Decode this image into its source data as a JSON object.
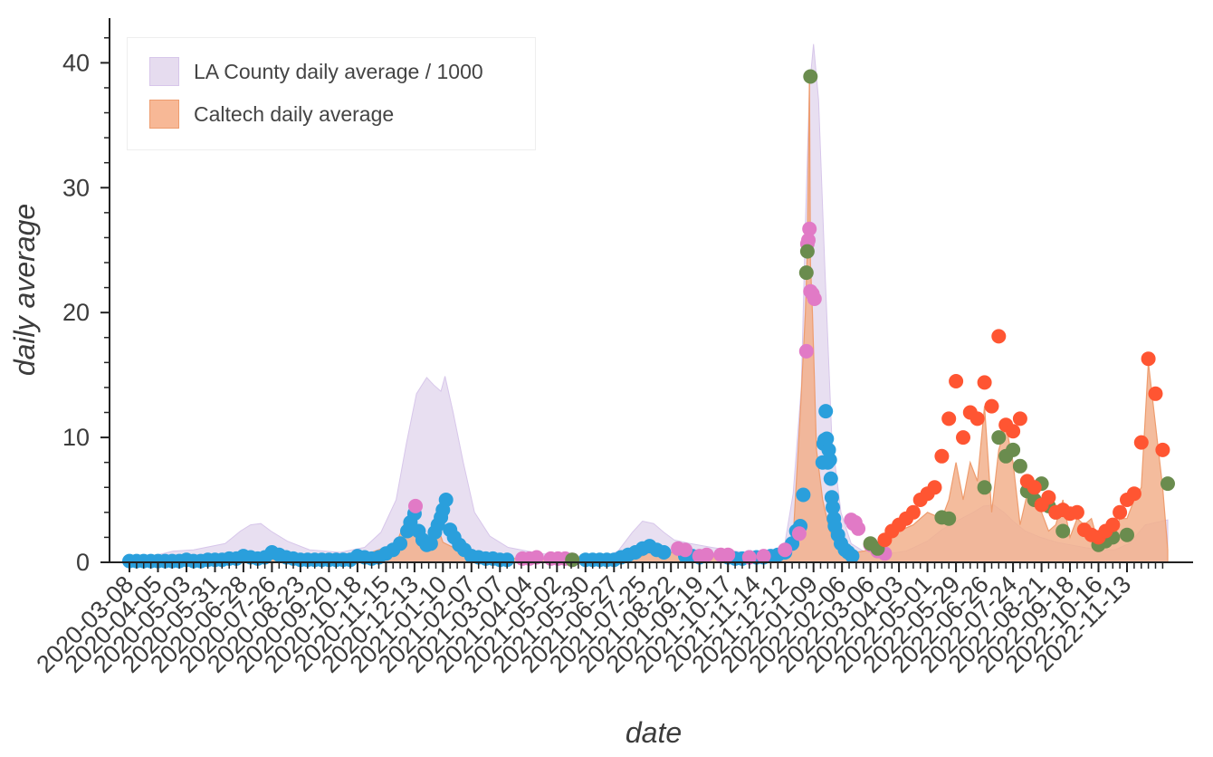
{
  "chart_data": {
    "type": "area+scatter",
    "xlabel": "date",
    "ylabel": "daily average",
    "ylim": [
      0,
      43
    ],
    "yticks": [
      0,
      10,
      20,
      30,
      40
    ],
    "xlim": [
      "2020-03-08",
      "2022-12-23"
    ],
    "xtick_labels": [
      "2020-03-08",
      "2020-04-05",
      "2020-05-03",
      "2020-05-31",
      "2020-06-28",
      "2020-07-26",
      "2020-08-23",
      "2020-09-20",
      "2020-10-18",
      "2020-11-15",
      "2020-12-13",
      "2021-01-10",
      "2021-02-07",
      "2021-03-07",
      "2021-04-04",
      "2021-05-02",
      "2021-05-30",
      "2021-06-27",
      "2021-07-25",
      "2021-08-22",
      "2021-09-19",
      "2021-10-17",
      "2021-11-14",
      "2021-12-12",
      "2022-01-09",
      "2022-02-06",
      "2022-03-06",
      "2022-04-03",
      "2022-05-01",
      "2022-05-29",
      "2022-06-26",
      "2022-07-24",
      "2022-08-21",
      "2022-09-18",
      "2022-10-16",
      "2022-11-13"
    ],
    "legend_position": "top-left",
    "grid": false,
    "colors": {
      "la_fill": "#e6dcef",
      "la_edge": "#d7c6ea",
      "caltech_fill": "#f2b08c",
      "caltech_edge": "#ee9c6e",
      "dot_blue": "#2a9fdc",
      "dot_pink": "#e17ac6",
      "dot_green": "#6a8c4e",
      "dot_red": "#ff5532",
      "axis": "#222222"
    },
    "legend": [
      {
        "label": "LA County daily average / 1000",
        "color": "#e6dcef",
        "edge": "#d7c6ea"
      },
      {
        "label": "Caltech daily average",
        "color": "#f7b896",
        "edge": "#ee9c6e"
      }
    ],
    "series": [
      {
        "name": "LA County daily average / 1000",
        "kind": "area",
        "x": [
          "2020-03-08",
          "2020-04-05",
          "2020-04-20",
          "2020-05-10",
          "2020-06-10",
          "2020-06-25",
          "2020-07-05",
          "2020-07-15",
          "2020-07-25",
          "2020-08-10",
          "2020-09-01",
          "2020-10-01",
          "2020-10-25",
          "2020-11-10",
          "2020-11-25",
          "2020-12-05",
          "2020-12-15",
          "2020-12-25",
          "2021-01-01",
          "2021-01-08",
          "2021-01-12",
          "2021-01-20",
          "2021-01-30",
          "2021-02-10",
          "2021-02-25",
          "2021-03-15",
          "2021-04-15",
          "2021-05-15",
          "2021-06-15",
          "2021-07-01",
          "2021-07-15",
          "2021-07-25",
          "2021-08-05",
          "2021-08-15",
          "2021-08-25",
          "2021-09-10",
          "2021-10-01",
          "2021-11-01",
          "2021-12-01",
          "2021-12-12",
          "2021-12-20",
          "2021-12-28",
          "2022-01-01",
          "2022-01-05",
          "2022-01-09",
          "2022-01-14",
          "2022-01-20",
          "2022-01-27",
          "2022-02-05",
          "2022-02-15",
          "2022-03-01",
          "2022-03-15",
          "2022-04-10",
          "2022-05-01",
          "2022-05-15",
          "2022-06-01",
          "2022-06-15",
          "2022-06-25",
          "2022-07-05",
          "2022-07-15",
          "2022-07-24",
          "2022-08-05",
          "2022-08-20",
          "2022-09-05",
          "2022-09-25",
          "2022-10-16",
          "2022-11-01",
          "2022-11-15",
          "2022-12-01",
          "2022-12-23"
        ],
        "values": [
          0.1,
          0.6,
          0.9,
          1.0,
          1.5,
          2.5,
          3.0,
          3.1,
          2.5,
          1.7,
          1.0,
          0.8,
          1.2,
          2.4,
          5.0,
          9.5,
          13.5,
          14.8,
          14.2,
          13.7,
          14.9,
          12.0,
          8.0,
          4.0,
          2.1,
          1.2,
          0.7,
          0.5,
          0.3,
          0.9,
          2.4,
          3.3,
          3.1,
          2.4,
          1.8,
          1.5,
          1.2,
          0.8,
          0.7,
          1.6,
          5.5,
          14.0,
          27.0,
          38.0,
          41.5,
          37.0,
          24.0,
          10.0,
          4.0,
          1.5,
          0.8,
          0.6,
          0.9,
          1.7,
          2.6,
          3.4,
          4.0,
          4.5,
          4.6,
          4.0,
          3.3,
          2.5,
          2.0,
          1.6,
          1.3,
          1.0,
          1.0,
          1.5,
          3.0,
          3.4
        ]
      },
      {
        "name": "Caltech daily average",
        "kind": "area",
        "x": [
          "2020-03-08",
          "2020-06-28",
          "2020-07-26",
          "2020-08-20",
          "2020-10-18",
          "2020-11-25",
          "2020-12-05",
          "2020-12-13",
          "2020-12-25",
          "2021-01-05",
          "2021-01-10",
          "2021-01-20",
          "2021-02-07",
          "2021-04-04",
          "2021-06-27",
          "2021-07-25",
          "2021-08-05",
          "2021-08-22",
          "2021-09-19",
          "2021-10-17",
          "2021-11-14",
          "2021-12-12",
          "2021-12-20",
          "2021-12-27",
          "2022-01-01",
          "2022-01-03",
          "2022-01-05",
          "2022-01-06",
          "2022-01-08",
          "2022-01-12",
          "2022-01-18",
          "2022-01-25",
          "2022-02-01",
          "2022-02-06",
          "2022-02-12",
          "2022-02-20",
          "2022-03-06",
          "2022-03-20",
          "2022-04-03",
          "2022-04-17",
          "2022-05-01",
          "2022-05-15",
          "2022-05-22",
          "2022-05-29",
          "2022-06-05",
          "2022-06-12",
          "2022-06-19",
          "2022-06-26",
          "2022-07-03",
          "2022-07-10",
          "2022-07-17",
          "2022-07-24",
          "2022-07-31",
          "2022-08-07",
          "2022-08-14",
          "2022-08-21",
          "2022-08-28",
          "2022-09-04",
          "2022-09-11",
          "2022-09-18",
          "2022-09-25",
          "2022-10-02",
          "2022-10-09",
          "2022-10-16",
          "2022-10-23",
          "2022-10-30",
          "2022-11-06",
          "2022-11-13",
          "2022-11-20",
          "2022-11-27",
          "2022-12-04",
          "2022-12-11",
          "2022-12-18",
          "2022-12-23"
        ],
        "values": [
          0,
          0.3,
          0.6,
          0.3,
          0.4,
          1.5,
          3.5,
          2.5,
          1.3,
          2.8,
          1.6,
          1.2,
          0.4,
          0.3,
          0.2,
          0.5,
          1.0,
          0.8,
          0.5,
          0.4,
          0.4,
          0.5,
          2.0,
          12.0,
          20.0,
          25.0,
          38.9,
          24.0,
          20.0,
          9.0,
          5.0,
          2.5,
          1.5,
          0.8,
          0.5,
          0.8,
          1.0,
          1.5,
          2.5,
          3.0,
          4.0,
          3.5,
          5.0,
          8.0,
          5.0,
          8.0,
          6.5,
          12.5,
          4.0,
          9.0,
          11.0,
          8.0,
          3.0,
          5.5,
          5.0,
          4.0,
          2.5,
          3.0,
          5.0,
          2.0,
          3.5,
          3.0,
          3.5,
          1.5,
          1.5,
          2.0,
          3.5,
          3.5,
          5.0,
          6.0,
          16.0,
          11.0,
          6.0,
          1.0
        ]
      },
      {
        "name": "blue",
        "kind": "scatter",
        "x": [
          "2020-03-08",
          "2020-03-15",
          "2020-03-22",
          "2020-03-29",
          "2020-04-05",
          "2020-04-12",
          "2020-04-19",
          "2020-04-26",
          "2020-05-03",
          "2020-05-10",
          "2020-05-17",
          "2020-05-24",
          "2020-05-31",
          "2020-06-07",
          "2020-06-14",
          "2020-06-21",
          "2020-06-28",
          "2020-07-05",
          "2020-07-12",
          "2020-07-19",
          "2020-07-26",
          "2020-08-02",
          "2020-08-09",
          "2020-08-16",
          "2020-08-23",
          "2020-08-30",
          "2020-09-06",
          "2020-09-13",
          "2020-09-20",
          "2020-09-27",
          "2020-10-04",
          "2020-10-11",
          "2020-10-18",
          "2020-10-25",
          "2020-11-01",
          "2020-11-08",
          "2020-11-15",
          "2020-11-22",
          "2020-11-29",
          "2020-12-06",
          "2020-12-09",
          "2020-12-13",
          "2020-12-17",
          "2020-12-21",
          "2020-12-25",
          "2020-12-29",
          "2021-01-02",
          "2021-01-05",
          "2021-01-08",
          "2021-01-10",
          "2021-01-13",
          "2021-01-17",
          "2021-01-21",
          "2021-01-26",
          "2021-01-31",
          "2021-02-07",
          "2021-02-14",
          "2021-02-21",
          "2021-02-28",
          "2021-03-07",
          "2021-03-14",
          "2021-05-30",
          "2021-06-06",
          "2021-06-13",
          "2021-06-20",
          "2021-06-27",
          "2021-07-04",
          "2021-07-11",
          "2021-07-18",
          "2021-07-25",
          "2021-08-01",
          "2021-08-08",
          "2021-08-15",
          "2021-09-05",
          "2021-09-12",
          "2021-09-19",
          "2021-10-17",
          "2021-10-24",
          "2021-10-31",
          "2021-11-07",
          "2021-11-14",
          "2021-11-21",
          "2021-11-28",
          "2021-12-05",
          "2021-12-12",
          "2021-12-19",
          "2021-12-23",
          "2021-12-27",
          "2021-12-30",
          "2022-01-18",
          "2022-01-19",
          "2022-01-20",
          "2022-01-21",
          "2022-01-22",
          "2022-01-23",
          "2022-01-24",
          "2022-01-25",
          "2022-01-26",
          "2022-01-27",
          "2022-01-28",
          "2022-01-29",
          "2022-01-30",
          "2022-02-02",
          "2022-02-05",
          "2022-02-09",
          "2022-02-12",
          "2022-02-16"
        ],
        "values": [
          0.1,
          0.1,
          0.1,
          0.1,
          0.1,
          0.1,
          0.1,
          0.1,
          0.2,
          0.1,
          0.1,
          0.2,
          0.2,
          0.2,
          0.3,
          0.3,
          0.5,
          0.4,
          0.3,
          0.4,
          0.8,
          0.6,
          0.4,
          0.3,
          0.2,
          0.2,
          0.2,
          0.2,
          0.2,
          0.2,
          0.2,
          0.2,
          0.5,
          0.4,
          0.3,
          0.4,
          0.7,
          1.0,
          1.5,
          2.5,
          3.2,
          3.9,
          2.5,
          1.8,
          1.4,
          1.5,
          2.4,
          3.0,
          3.6,
          4.2,
          5.0,
          2.6,
          2.0,
          1.4,
          1.0,
          0.5,
          0.4,
          0.3,
          0.3,
          0.2,
          0.2,
          0.2,
          0.2,
          0.2,
          0.2,
          0.2,
          0.4,
          0.6,
          0.8,
          1.1,
          1.3,
          1.0,
          0.8,
          0.5,
          0.5,
          0.4,
          0.4,
          0.3,
          0.3,
          0.4,
          0.4,
          0.4,
          0.5,
          0.6,
          0.8,
          1.5,
          2.5,
          2.9,
          5.4,
          8.0,
          9.5,
          9.8,
          12.1,
          9.9,
          8.0,
          9.0,
          8.2,
          6.7,
          5.2,
          4.4,
          3.5,
          2.9,
          2.2,
          1.5,
          1.0,
          0.8,
          0.5
        ]
      },
      {
        "name": "pink",
        "kind": "scatter",
        "x": [
          "2020-12-14",
          "2021-03-29",
          "2021-04-05",
          "2021-04-12",
          "2021-04-26",
          "2021-05-03",
          "2021-05-10",
          "2021-05-17",
          "2021-08-29",
          "2021-09-05",
          "2021-09-19",
          "2021-09-26",
          "2021-10-10",
          "2021-10-17",
          "2021-11-07",
          "2021-11-21",
          "2021-12-12",
          "2021-12-26",
          "2022-01-02",
          "2022-01-03",
          "2022-01-04",
          "2022-01-05",
          "2022-01-06",
          "2022-01-08",
          "2022-01-10",
          "2022-02-15",
          "2022-02-17",
          "2022-02-19",
          "2022-02-22",
          "2022-03-06",
          "2022-03-13",
          "2022-03-20"
        ],
        "values": [
          4.5,
          0.3,
          0.3,
          0.4,
          0.3,
          0.3,
          0.3,
          0.2,
          1.1,
          1.0,
          0.5,
          0.6,
          0.6,
          0.6,
          0.4,
          0.5,
          1.0,
          2.3,
          16.9,
          25.5,
          25.8,
          26.7,
          21.7,
          21.5,
          21.1,
          3.4,
          3.1,
          3.2,
          2.7,
          1.4,
          0.9,
          0.7
        ]
      },
      {
        "name": "green",
        "kind": "scatter",
        "x": [
          "2021-05-17",
          "2022-01-02",
          "2022-01-03",
          "2022-01-06",
          "2022-03-06",
          "2022-03-13",
          "2022-05-15",
          "2022-05-22",
          "2022-06-26",
          "2022-07-10",
          "2022-07-17",
          "2022-07-24",
          "2022-07-31",
          "2022-08-07",
          "2022-08-14",
          "2022-08-21",
          "2022-08-28",
          "2022-09-04",
          "2022-09-11",
          "2022-10-16",
          "2022-10-23",
          "2022-10-30",
          "2022-11-13",
          "2022-12-23"
        ],
        "values": [
          0.2,
          23.2,
          24.9,
          38.9,
          1.5,
          1.1,
          3.6,
          3.5,
          6.0,
          10.0,
          8.5,
          9.0,
          7.7,
          5.7,
          5.0,
          6.3,
          4.5,
          4.0,
          2.5,
          1.4,
          1.7,
          2.0,
          2.2,
          6.3
        ]
      },
      {
        "name": "red",
        "kind": "scatter",
        "x": [
          "2022-03-20",
          "2022-03-27",
          "2022-04-03",
          "2022-04-10",
          "2022-04-17",
          "2022-04-24",
          "2022-05-01",
          "2022-05-08",
          "2022-05-15",
          "2022-05-22",
          "2022-05-29",
          "2022-06-05",
          "2022-06-12",
          "2022-06-19",
          "2022-06-26",
          "2022-07-03",
          "2022-07-10",
          "2022-07-17",
          "2022-07-24",
          "2022-07-31",
          "2022-08-07",
          "2022-08-14",
          "2022-08-21",
          "2022-08-28",
          "2022-09-04",
          "2022-09-11",
          "2022-09-18",
          "2022-09-25",
          "2022-10-02",
          "2022-10-09",
          "2022-10-16",
          "2022-10-23",
          "2022-10-30",
          "2022-11-06",
          "2022-11-13",
          "2022-11-20",
          "2022-11-27",
          "2022-12-04",
          "2022-12-11",
          "2022-12-18"
        ],
        "values": [
          1.8,
          2.5,
          3.0,
          3.5,
          4.0,
          5.0,
          5.5,
          6.0,
          8.5,
          11.5,
          14.5,
          10.0,
          12.0,
          11.5,
          14.4,
          12.5,
          18.1,
          11.0,
          10.5,
          11.5,
          6.5,
          6.0,
          4.6,
          5.2,
          4.0,
          4.2,
          3.9,
          4.0,
          2.6,
          2.2,
          2.0,
          2.5,
          3.0,
          4.0,
          5.0,
          5.5,
          9.6,
          16.3,
          13.5,
          9.0
        ]
      }
    ]
  }
}
